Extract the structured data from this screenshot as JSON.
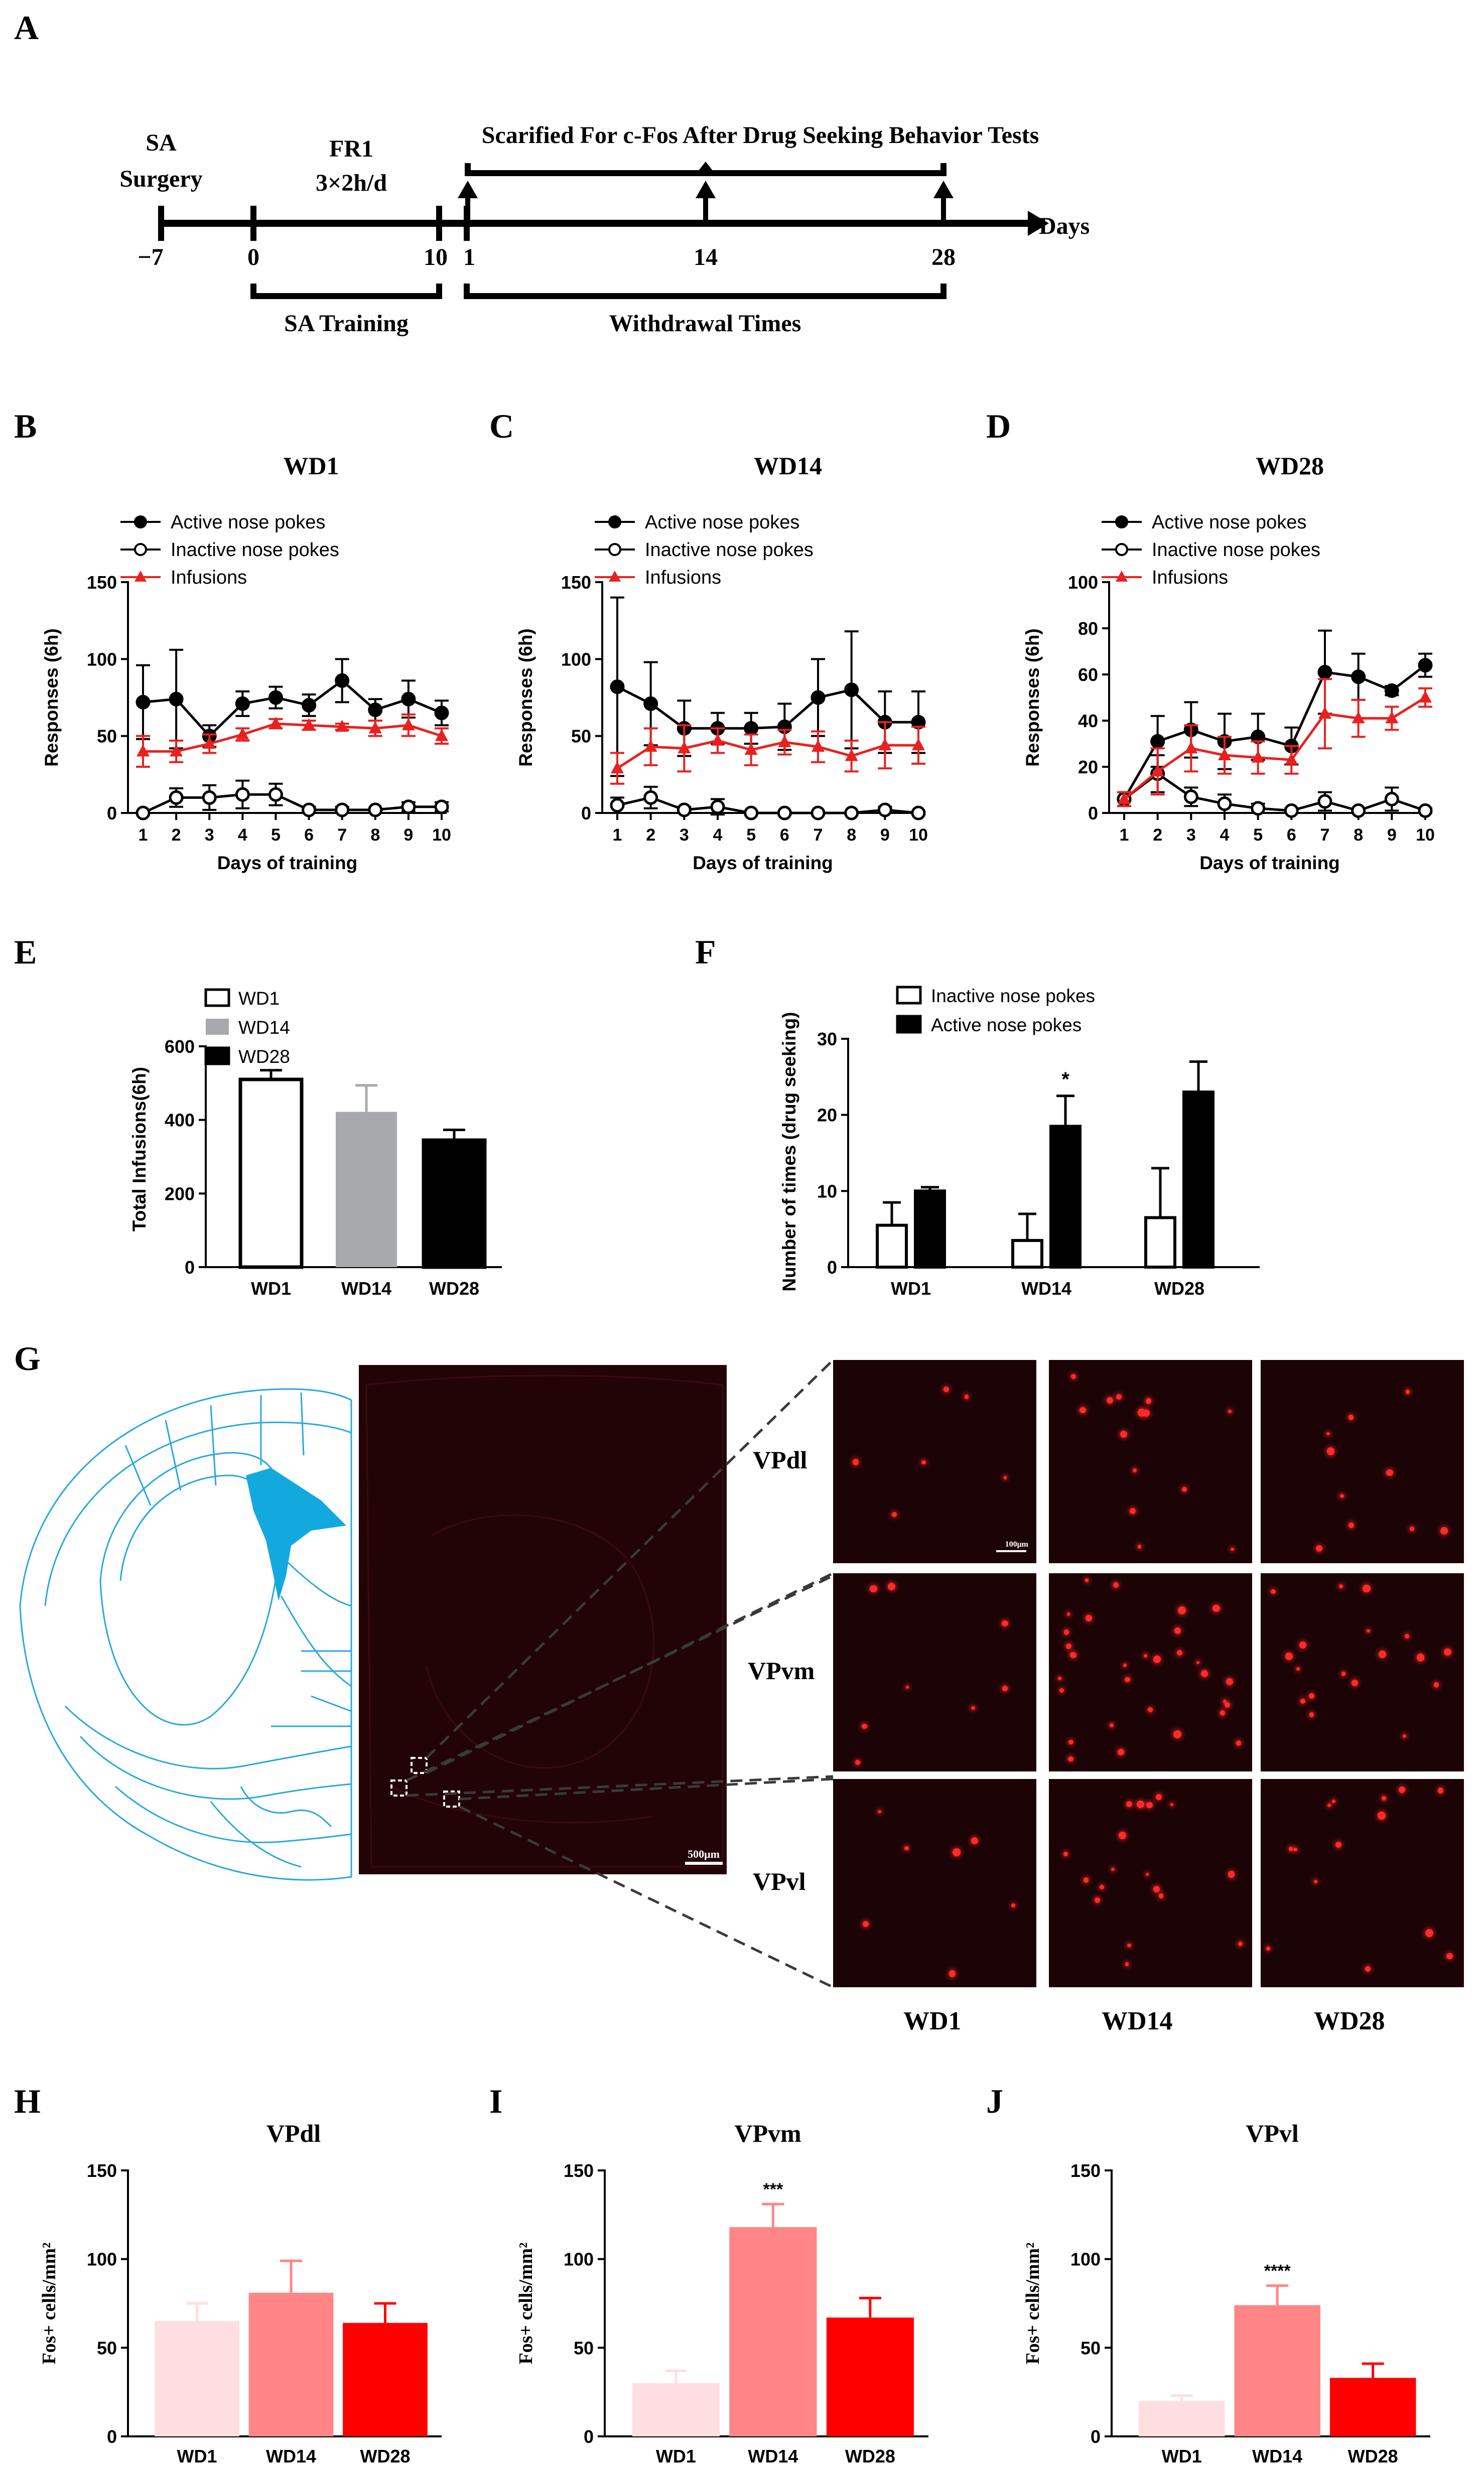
{
  "panels": {
    "A": "A",
    "B": "B",
    "C": "C",
    "D": "D",
    "E": "E",
    "F": "F",
    "G": "G",
    "H": "H",
    "I": "I",
    "J": "J"
  },
  "timeline": {
    "sa_surgery_line1": "SA",
    "sa_surgery_line2": "Surgery",
    "fr1_line1": "FR1",
    "fr1_line2": "3×2h/d",
    "sacrificed": "Scarified For c-Fos After Drug Seeking Behavior Tests",
    "days_label": "Days",
    "ticks": [
      "−7",
      "0",
      "10",
      "1",
      "14",
      "28"
    ],
    "sa_training": "SA Training",
    "withdrawal": "Withdrawal Times"
  },
  "colors": {
    "active": "#000000",
    "infusions": "#e8211f",
    "wd1_bar": "#ffffff",
    "wd14_bar": "#a7a9ac",
    "wd28_bar": "#000000",
    "fos_wd1": "#ffdedf",
    "fos_wd14": "#ff8586",
    "fos_wd28": "#ff0000",
    "atlas": "#29a8e0",
    "micro_bg": "#1c0406"
  },
  "legend_training": {
    "active": "Active nose pokes",
    "inactive": "Inactive nose pokes",
    "infusions": "Infusions"
  },
  "chart_data": [
    {
      "panel": "B",
      "type": "line",
      "title": "WD1",
      "xlabel": "Days of training",
      "ylabel": "Responses (6h)",
      "ylim": [
        0,
        150
      ],
      "yticks": [
        0,
        50,
        100,
        150
      ],
      "x": [
        1,
        2,
        3,
        4,
        5,
        6,
        7,
        8,
        9,
        10
      ],
      "legend": "top-left",
      "series": [
        {
          "name": "Active nose pokes",
          "values": [
            72,
            74,
            50,
            71,
            75,
            70,
            86,
            67,
            74,
            65
          ],
          "errors": [
            24,
            32,
            7,
            8,
            7,
            7,
            14,
            7,
            12,
            8
          ]
        },
        {
          "name": "Inactive nose pokes",
          "values": [
            0,
            10,
            10,
            12,
            12,
            2,
            2,
            2,
            4,
            4
          ],
          "errors": [
            0,
            6,
            8,
            9,
            7,
            2,
            2,
            1,
            3,
            3
          ]
        },
        {
          "name": "Infusions",
          "values": [
            40,
            40,
            45,
            51,
            58,
            57,
            56,
            55,
            57,
            50
          ],
          "errors": [
            10,
            7,
            6,
            4,
            3,
            3,
            2,
            5,
            7,
            5
          ]
        }
      ]
    },
    {
      "panel": "C",
      "type": "line",
      "title": "WD14",
      "xlabel": "Days of training",
      "ylabel": "Responses (6h)",
      "ylim": [
        0,
        150
      ],
      "yticks": [
        0,
        50,
        100,
        150
      ],
      "x": [
        1,
        2,
        3,
        4,
        5,
        6,
        7,
        8,
        9,
        10
      ],
      "legend": "top-left",
      "series": [
        {
          "name": "Active nose pokes",
          "values": [
            82,
            71,
            55,
            55,
            55,
            56,
            75,
            80,
            59,
            59
          ],
          "errors": [
            58,
            27,
            18,
            10,
            10,
            15,
            25,
            38,
            20,
            20
          ]
        },
        {
          "name": "Inactive nose pokes",
          "values": [
            5,
            10,
            2,
            4,
            0,
            0,
            0,
            0,
            2,
            0
          ],
          "errors": [
            5,
            7,
            2,
            5,
            0,
            0,
            0,
            0,
            2,
            0
          ]
        },
        {
          "name": "Infusions",
          "values": [
            29,
            43,
            42,
            47,
            41,
            46,
            43,
            37,
            44,
            44
          ],
          "errors": [
            10,
            12,
            15,
            8,
            10,
            8,
            10,
            10,
            15,
            12
          ]
        }
      ]
    },
    {
      "panel": "D",
      "type": "line",
      "title": "WD28",
      "xlabel": "Days of training",
      "ylabel": "Responses (6h)",
      "ylim": [
        0,
        100
      ],
      "yticks": [
        0,
        20,
        40,
        60,
        80,
        100
      ],
      "x": [
        1,
        2,
        3,
        4,
        5,
        6,
        7,
        8,
        9,
        10
      ],
      "legend": "top-left",
      "series": [
        {
          "name": "Active nose pokes",
          "values": [
            6,
            31,
            36,
            31,
            33,
            29,
            61,
            59,
            53,
            64
          ],
          "errors": [
            3,
            11,
            12,
            12,
            10,
            8,
            18,
            10,
            2,
            5
          ]
        },
        {
          "name": "Inactive nose pokes",
          "values": [
            6,
            17,
            7,
            4,
            2,
            1,
            5,
            1,
            6,
            1
          ],
          "errors": [
            3,
            8,
            4,
            4,
            2,
            1,
            4,
            1,
            5,
            1
          ]
        },
        {
          "name": "Infusions",
          "values": [
            6,
            18,
            28,
            25,
            24,
            23,
            43,
            41,
            41,
            50
          ],
          "errors": [
            3,
            10,
            10,
            8,
            7,
            6,
            15,
            8,
            5,
            4
          ]
        }
      ]
    },
    {
      "panel": "E",
      "type": "bar",
      "title": "",
      "xlabel": "",
      "ylabel": "Total Infusions(6h)",
      "categories": [
        "WD1",
        "WD14",
        "WD28"
      ],
      "values": [
        510,
        422,
        345
      ],
      "errors": [
        25,
        72,
        28
      ],
      "ylim": [
        0,
        600
      ],
      "yticks": [
        0,
        200,
        400,
        600
      ],
      "legend": "top-left",
      "legend_items": [
        "WD1",
        "WD14",
        "WD28"
      ]
    },
    {
      "panel": "F",
      "type": "bar",
      "title": "",
      "xlabel": "",
      "ylabel": "Number of times (drug seeking)",
      "categories": [
        "WD1",
        "WD14",
        "WD28"
      ],
      "series": [
        {
          "name": "Inactive nose pokes",
          "values": [
            5.5,
            3.5,
            6.5
          ],
          "errors": [
            3,
            3.5,
            6.5
          ]
        },
        {
          "name": "Active nose pokes",
          "values": [
            10,
            18.5,
            23
          ],
          "errors": [
            0.5,
            4,
            4
          ]
        }
      ],
      "significance": [
        "",
        "*",
        ""
      ],
      "ylim": [
        0,
        30
      ],
      "yticks": [
        0,
        10,
        20,
        30
      ],
      "legend": "top"
    },
    {
      "panel": "H",
      "type": "bar",
      "title": "VPdl",
      "xlabel": "",
      "ylabel": "Fos+ cells/mm²",
      "categories": [
        "WD1",
        "WD14",
        "WD28"
      ],
      "values": [
        65,
        81,
        64
      ],
      "errors": [
        10,
        18,
        11
      ],
      "significance": [
        "",
        "",
        ""
      ],
      "ylim": [
        0,
        150
      ],
      "yticks": [
        0,
        50,
        100,
        150
      ]
    },
    {
      "panel": "I",
      "type": "bar",
      "title": "VPvm",
      "xlabel": "",
      "ylabel": "Fos+ cells/mm²",
      "categories": [
        "WD1",
        "WD14",
        "WD28"
      ],
      "values": [
        30,
        118,
        67
      ],
      "errors": [
        7,
        13,
        11
      ],
      "significance": [
        "",
        "***",
        ""
      ],
      "ylim": [
        0,
        150
      ],
      "yticks": [
        0,
        50,
        100,
        150
      ]
    },
    {
      "panel": "J",
      "type": "bar",
      "title": "VPvl",
      "xlabel": "",
      "ylabel": "Fos+ cells/mm²",
      "categories": [
        "WD1",
        "WD14",
        "WD28"
      ],
      "values": [
        20,
        74,
        33
      ],
      "errors": [
        3,
        11,
        8
      ],
      "significance": [
        "",
        "****",
        ""
      ],
      "ylim": [
        0,
        150
      ],
      "yticks": [
        0,
        50,
        100,
        150
      ]
    }
  ],
  "histology": {
    "regions": [
      "VPdl",
      "VPvm",
      "VPvl"
    ],
    "columns": [
      "WD1",
      "WD14",
      "WD28"
    ],
    "scale_overview": "500μm",
    "scale_micro": "100μm"
  }
}
